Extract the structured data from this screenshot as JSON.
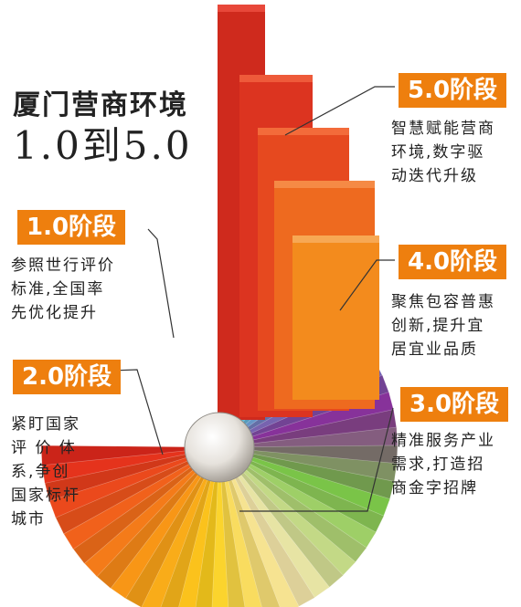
{
  "title": {
    "line1": "厦门营商环境",
    "line2": "1.0到5.0"
  },
  "colors": {
    "badge": "#ee7f0e"
  },
  "stages": [
    {
      "label": "1.0阶段",
      "lines": [
        "参照世行评价",
        "标准,全国率",
        "先优化提升"
      ]
    },
    {
      "label": "2.0阶段",
      "lines": [
        "紧盯国家",
        "评 价 体",
        "系,争创",
        "国家标杆",
        "城市"
      ]
    },
    {
      "label": "3.0阶段",
      "lines": [
        "精准服务产业",
        "需求,打造招",
        "商金字招牌"
      ]
    },
    {
      "label": "4.0阶段",
      "lines": [
        "聚焦包容普惠",
        "创新,提升宜",
        "居宜业品质"
      ]
    },
    {
      "label": "5.0阶段",
      "lines": [
        "智慧赋能营商",
        "环境,数字驱",
        "动迭代升级"
      ]
    }
  ]
}
